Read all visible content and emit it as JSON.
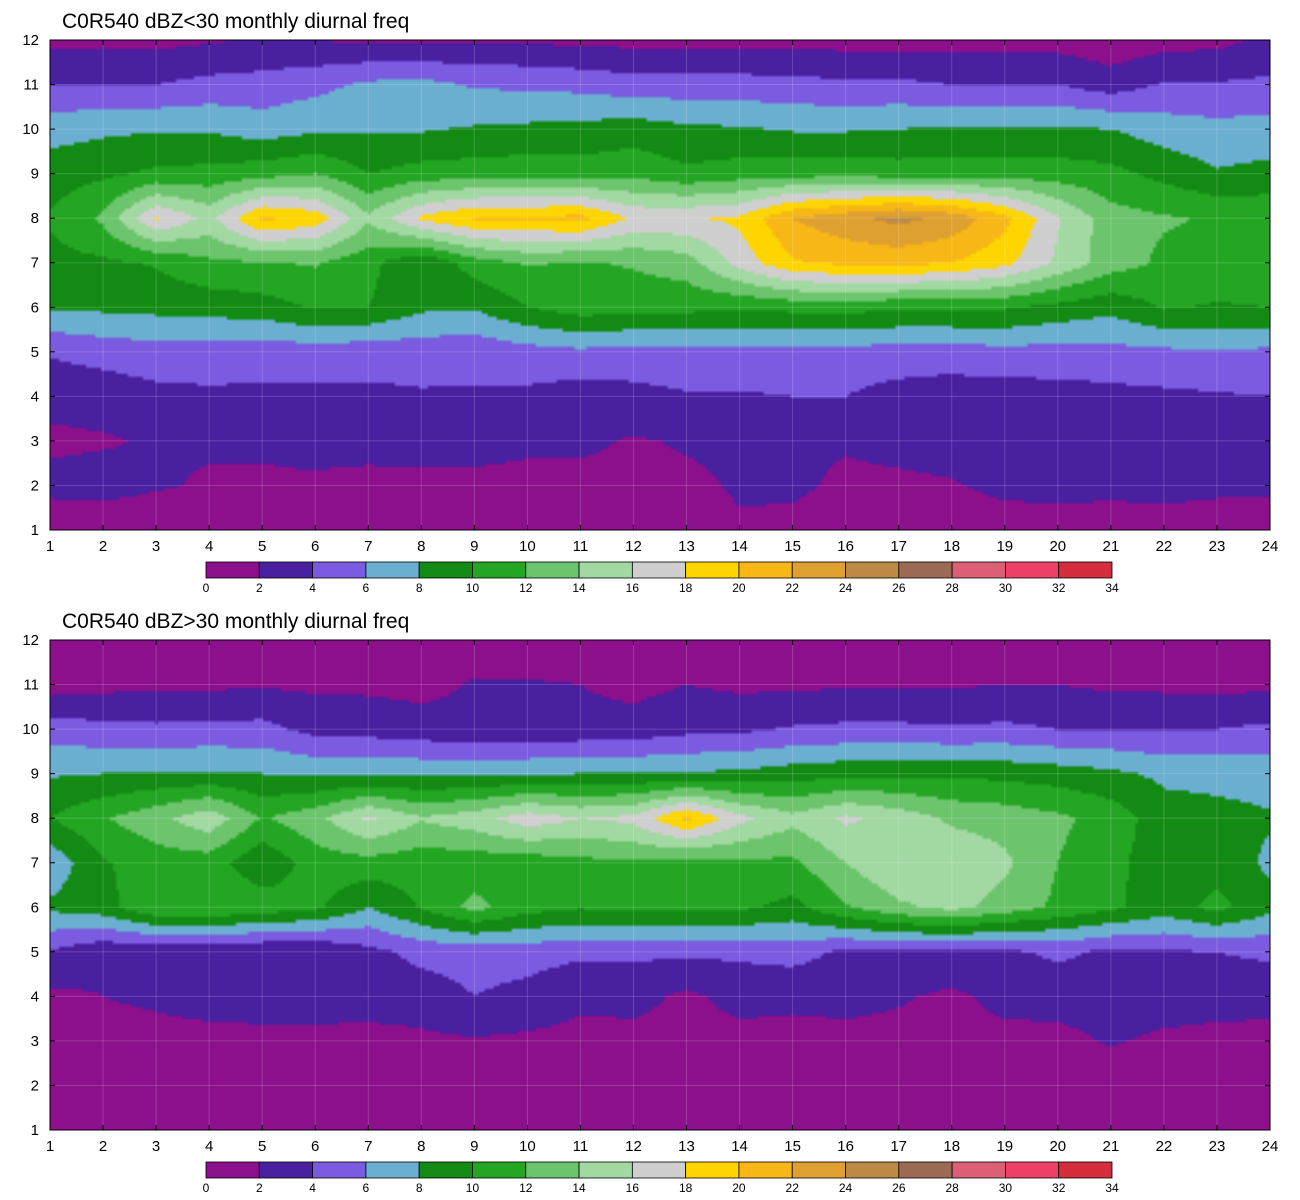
{
  "chart_data": [
    {
      "type": "contour",
      "title": "C0R540 dBZ<30 monthly diurnal freq",
      "xlabel": "",
      "ylabel": "",
      "x": [
        1,
        2,
        3,
        4,
        5,
        6,
        7,
        8,
        9,
        10,
        11,
        12,
        13,
        14,
        15,
        16,
        17,
        18,
        19,
        20,
        21,
        22,
        23,
        24
      ],
      "y": [
        1,
        2,
        3,
        4,
        5,
        6,
        7,
        8,
        9,
        10,
        11,
        12
      ],
      "xlim": [
        1,
        24
      ],
      "ylim": [
        1,
        12
      ],
      "grid": true,
      "z": [
        [
          0.5,
          0.5,
          0.5,
          0.8,
          1.0,
          1.0,
          0.6,
          0.6,
          0.6,
          0.6,
          1.2,
          0.6,
          1.2,
          1.8,
          1.4,
          0.6,
          0.6,
          0.5,
          0.8,
          0.8,
          0.8,
          0.5,
          0.5,
          0.5
        ],
        [
          2.6,
          2.8,
          2.2,
          1.8,
          1.8,
          1.8,
          1.5,
          1.4,
          1.4,
          1.4,
          1.4,
          1.4,
          1.6,
          2.2,
          2.4,
          1.6,
          1.6,
          1.8,
          2.6,
          2.8,
          2.6,
          3.0,
          2.6,
          2.6
        ],
        [
          1.6,
          1.8,
          2.2,
          2.2,
          2.2,
          2.4,
          2.6,
          2.8,
          2.8,
          2.4,
          2.4,
          1.8,
          2.2,
          2.4,
          2.4,
          2.2,
          2.6,
          3.0,
          3.0,
          3.0,
          3.0,
          3.2,
          3.2,
          3.0
        ],
        [
          2.6,
          2.8,
          3.4,
          3.6,
          3.6,
          3.6,
          3.6,
          3.8,
          3.8,
          3.6,
          3.0,
          3.4,
          3.8,
          3.8,
          4.0,
          4.0,
          3.2,
          3.0,
          3.0,
          3.2,
          3.4,
          3.6,
          3.8,
          4.0
        ],
        [
          4.2,
          4.8,
          5.2,
          5.2,
          4.8,
          5.0,
          4.8,
          4.8,
          4.6,
          5.2,
          5.6,
          5.2,
          5.4,
          5.6,
          5.4,
          5.2,
          5.2,
          5.0,
          5.4,
          5.2,
          5.4,
          5.6,
          5.8,
          5.6
        ],
        [
          8.2,
          8.4,
          8.6,
          8.8,
          9.2,
          10.2,
          10.0,
          8.4,
          8.2,
          10.0,
          11.0,
          10.8,
          10.6,
          10.2,
          10.6,
          10.8,
          10.2,
          10.4,
          10.2,
          9.4,
          8.6,
          10.2,
          9.8,
          10.0
        ],
        [
          9.4,
          9.6,
          10.2,
          11.6,
          11.8,
          12.2,
          10.6,
          8.2,
          11.0,
          12.2,
          11.8,
          12.2,
          13.0,
          16.8,
          19.8,
          20.4,
          20.6,
          20.0,
          18.6,
          15.6,
          13.0,
          11.6,
          11.4,
          11.6
        ],
        [
          10.2,
          12.4,
          18.2,
          15.4,
          20.4,
          19.2,
          14.4,
          18.4,
          20.2,
          20.2,
          20.6,
          17.6,
          17.8,
          18.4,
          22.0,
          23.4,
          24.6,
          23.4,
          20.6,
          16.2,
          12.8,
          12.2,
          11.8,
          11.6
        ],
        [
          9.0,
          9.6,
          10.4,
          10.6,
          11.2,
          12.0,
          10.0,
          10.8,
          11.0,
          11.2,
          11.0,
          11.4,
          10.4,
          11.0,
          11.2,
          11.2,
          11.0,
          11.0,
          11.0,
          11.0,
          10.6,
          9.4,
          8.2,
          8.6
        ],
        [
          7.2,
          7.6,
          7.8,
          7.8,
          7.0,
          7.6,
          7.8,
          7.8,
          8.2,
          8.4,
          8.6,
          9.0,
          8.4,
          8.2,
          7.8,
          7.8,
          8.0,
          8.2,
          8.2,
          8.2,
          8.0,
          7.0,
          6.6,
          6.8
        ],
        [
          4.0,
          4.0,
          4.0,
          4.6,
          4.8,
          5.4,
          6.4,
          6.6,
          5.8,
          5.6,
          5.4,
          4.8,
          4.8,
          4.8,
          4.6,
          4.4,
          4.4,
          4.0,
          4.0,
          4.0,
          3.0,
          4.2,
          4.2,
          4.4
        ],
        [
          1.4,
          1.6,
          1.4,
          1.8,
          2.2,
          2.0,
          1.6,
          1.6,
          1.8,
          1.8,
          1.4,
          1.4,
          1.4,
          1.4,
          1.4,
          1.2,
          1.2,
          1.2,
          1.2,
          1.2,
          0.6,
          1.2,
          1.4,
          2.4
        ]
      ],
      "colorbar": {
        "ticks": [
          0,
          2,
          4,
          6,
          8,
          10,
          12,
          14,
          16,
          18,
          20,
          22,
          24,
          26,
          28,
          30,
          32,
          34
        ],
        "colors": [
          "#8c0f8c",
          "#4820a0",
          "#7b5be0",
          "#6aaed0",
          "#138a13",
          "#24a624",
          "#6cc46c",
          "#a2d8a2",
          "#cfcfcf",
          "#ffd500",
          "#f7b717",
          "#dea030",
          "#bc8a45",
          "#9c6b56",
          "#dc5f75",
          "#ee3f67",
          "#d42d3d"
        ]
      }
    },
    {
      "type": "contour",
      "title": "C0R540 dBZ>30 monthly diurnal freq",
      "xlabel": "",
      "ylabel": "",
      "x": [
        1,
        2,
        3,
        4,
        5,
        6,
        7,
        8,
        9,
        10,
        11,
        12,
        13,
        14,
        15,
        16,
        17,
        18,
        19,
        20,
        21,
        22,
        23,
        24
      ],
      "y": [
        1,
        2,
        3,
        4,
        5,
        6,
        7,
        8,
        9,
        10,
        11,
        12
      ],
      "xlim": [
        1,
        24
      ],
      "ylim": [
        1,
        12
      ],
      "grid": true,
      "z": [
        [
          0.2,
          0.2,
          0.2,
          0.2,
          0.2,
          0.2,
          0.2,
          0.2,
          0.2,
          0.2,
          0.2,
          0.2,
          0.2,
          0.2,
          0.2,
          0.2,
          0.2,
          0.2,
          0.2,
          0.2,
          0.2,
          0.2,
          0.2,
          0.2
        ],
        [
          0.6,
          0.6,
          0.6,
          0.6,
          0.6,
          0.6,
          0.6,
          0.6,
          0.6,
          0.6,
          0.6,
          0.6,
          0.6,
          0.6,
          0.6,
          0.6,
          0.6,
          0.6,
          0.6,
          0.6,
          0.6,
          0.6,
          0.6,
          0.6
        ],
        [
          1.2,
          1.2,
          1.2,
          1.2,
          1.4,
          1.4,
          1.4,
          1.6,
          1.8,
          1.6,
          1.4,
          1.4,
          1.4,
          1.4,
          1.4,
          1.4,
          1.4,
          1.4,
          1.4,
          1.4,
          2.2,
          1.6,
          1.4,
          1.4
        ],
        [
          1.6,
          2.0,
          2.4,
          3.0,
          3.0,
          3.0,
          2.8,
          3.0,
          4.0,
          3.4,
          2.4,
          2.6,
          1.6,
          2.6,
          2.4,
          2.6,
          2.2,
          1.6,
          2.6,
          2.8,
          3.0,
          3.0,
          2.8,
          2.6
        ],
        [
          3.8,
          2.4,
          2.4,
          2.2,
          2.0,
          2.0,
          3.4,
          4.6,
          4.8,
          4.8,
          4.4,
          4.4,
          4.4,
          4.4,
          4.8,
          3.6,
          3.6,
          3.6,
          3.6,
          4.4,
          3.6,
          3.8,
          4.0,
          4.4
        ],
        [
          8.4,
          9.2,
          11.8,
          12.0,
          11.2,
          10.4,
          8.0,
          10.2,
          12.6,
          10.8,
          10.2,
          10.6,
          10.6,
          10.4,
          9.4,
          11.8,
          13.6,
          14.6,
          13.2,
          11.6,
          10.4,
          9.0,
          10.6,
          8.6
        ],
        [
          6.6,
          9.8,
          11.0,
          11.0,
          8.4,
          11.0,
          11.2,
          10.8,
          10.8,
          10.8,
          11.4,
          11.8,
          11.0,
          11.6,
          11.6,
          14.0,
          16.0,
          15.6,
          14.4,
          12.0,
          10.6,
          8.8,
          9.2,
          7.6
        ],
        [
          10.0,
          11.8,
          13.4,
          15.4,
          11.8,
          13.4,
          16.4,
          14.2,
          15.2,
          17.2,
          16.0,
          16.6,
          20.4,
          16.6,
          14.6,
          16.4,
          15.2,
          13.6,
          13.2,
          12.4,
          11.2,
          8.8,
          8.6,
          8.2
        ],
        [
          7.8,
          8.0,
          8.2,
          8.2,
          8.0,
          7.6,
          7.6,
          7.6,
          7.6,
          7.8,
          8.0,
          8.0,
          8.2,
          8.4,
          9.0,
          9.4,
          9.6,
          9.6,
          9.4,
          9.0,
          8.4,
          7.6,
          7.4,
          7.2
        ],
        [
          5.0,
          4.6,
          4.4,
          4.6,
          4.6,
          3.4,
          3.2,
          2.8,
          2.4,
          2.4,
          2.6,
          2.8,
          3.4,
          3.6,
          4.2,
          4.4,
          4.4,
          4.2,
          4.4,
          4.0,
          4.0,
          3.8,
          4.0,
          4.4
        ],
        [
          1.0,
          1.4,
          1.6,
          1.6,
          1.8,
          1.6,
          1.6,
          1.4,
          2.2,
          2.2,
          2.0,
          1.4,
          2.0,
          1.6,
          1.6,
          1.8,
          1.8,
          1.8,
          2.0,
          2.0,
          1.6,
          1.6,
          1.4,
          1.6
        ],
        [
          0.6,
          0.6,
          0.6,
          0.6,
          0.6,
          0.6,
          0.6,
          0.6,
          0.6,
          0.6,
          0.6,
          0.6,
          0.6,
          0.6,
          0.6,
          0.6,
          0.6,
          0.6,
          0.6,
          0.6,
          0.6,
          0.6,
          0.6,
          0.6
        ]
      ],
      "colorbar": {
        "ticks": [
          0,
          2,
          4,
          6,
          8,
          10,
          12,
          14,
          16,
          18,
          20,
          22,
          24,
          26,
          28,
          30,
          32,
          34
        ],
        "colors": [
          "#8c0f8c",
          "#4820a0",
          "#7b5be0",
          "#6aaed0",
          "#138a13",
          "#24a624",
          "#6cc46c",
          "#a2d8a2",
          "#cfcfcf",
          "#ffd500",
          "#f7b717",
          "#dea030",
          "#bc8a45",
          "#9c6b56",
          "#dc5f75",
          "#ee3f67",
          "#d42d3d"
        ]
      }
    }
  ]
}
